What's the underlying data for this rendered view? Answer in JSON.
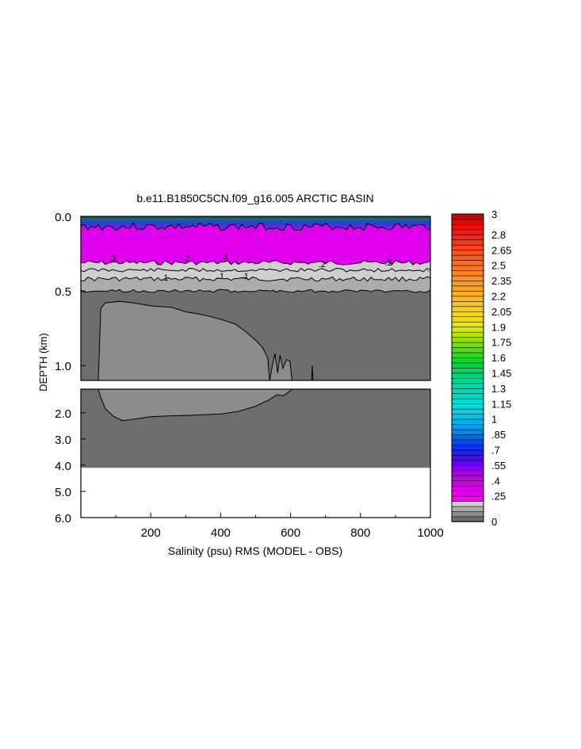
{
  "chart_data": {
    "type": "heatmap",
    "title": "b.e11.B1850C5CN.f09_g16.005 ARCTIC BASIN",
    "xlabel": "Salinity (psu) RMS (MODEL - OBS)",
    "ylabel": "DEPTH (km)",
    "xlim": [
      0,
      1000
    ],
    "x_ticks": [
      200,
      400,
      600,
      800,
      1000
    ],
    "x_tick_labels": [
      "200",
      "400",
      "600",
      "800",
      "1000"
    ],
    "upper_panel": {
      "ylim": [
        0.0,
        1.1
      ],
      "y_ticks": [
        0.0,
        0.5,
        1.0
      ],
      "y_tick_labels": [
        "0.0",
        "0.5",
        "1.0"
      ]
    },
    "lower_panel": {
      "ylim": [
        1.1,
        6.0
      ],
      "y_ticks": [
        2.0,
        3.0,
        4.0,
        5.0,
        6.0
      ],
      "y_tick_labels": [
        "2.0",
        "3.0",
        "4.0",
        "5.0",
        "6.0"
      ],
      "no_data_below_km": 4.1
    },
    "contour_labels": [
      ".1",
      ".2",
      ".3"
    ],
    "colorbar": {
      "min": 0,
      "max": 3,
      "step": 0.05,
      "tick_labels": [
        "0",
        ".25",
        ".4",
        ".55",
        ".7",
        ".85",
        "1",
        "1.15",
        "1.3",
        "1.45",
        "1.6",
        "1.75",
        "1.9",
        "2.05",
        "2.2",
        "2.35",
        "2.5",
        "2.65",
        "2.8",
        "3"
      ]
    },
    "fields": {
      "background_deep": 0.05,
      "bowl_region": 0.1,
      "band_lower": 0.15,
      "band_upper": 0.2,
      "magenta_layer": 0.3,
      "surface_layer": 0.6
    },
    "grid": false,
    "legend": "colorbar-right"
  }
}
